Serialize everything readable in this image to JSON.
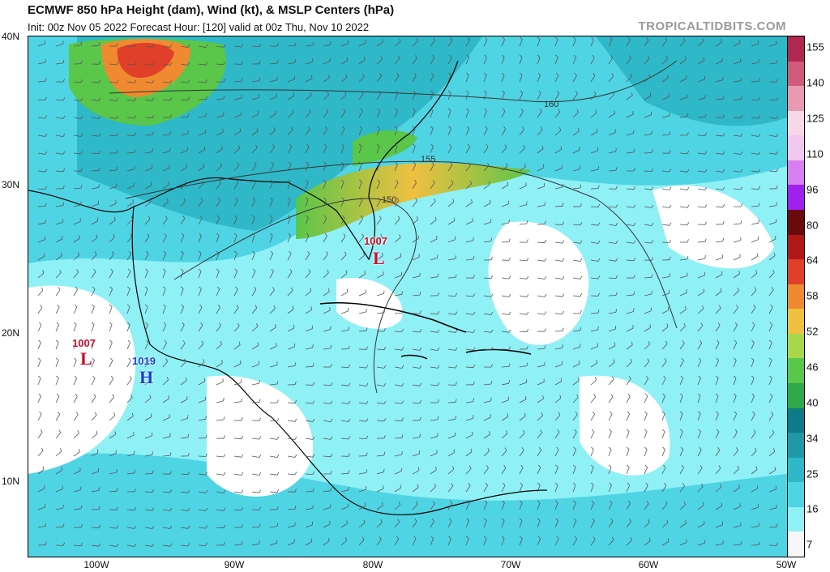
{
  "header": {
    "title": "ECMWF 850 hPa Height (dam), Wind (kt), & MSLP Centers (hPa)",
    "subtitle": "Init: 00z Nov 05 2022   Forecast Hour: [120]   valid at 00z Thu, Nov 10 2022",
    "brand": "TROPICALTIDBITS.COM"
  },
  "axes": {
    "lat_ticks": [
      "40N",
      "30N",
      "20N",
      "10N"
    ],
    "lon_ticks": [
      "100W",
      "90W",
      "80W",
      "70W",
      "60W",
      "50W"
    ]
  },
  "colorbar": {
    "labels": [
      "155",
      "140",
      "125",
      "110",
      "96",
      "80",
      "64",
      "58",
      "52",
      "46",
      "40",
      "34",
      "25",
      "16",
      "7"
    ],
    "colors": [
      "#f7f7f7",
      "#8ff0f6",
      "#4fd4e4",
      "#2fb8c8",
      "#1f98a8",
      "#0f7a88",
      "#2fa84a",
      "#5ac64a",
      "#a8d84a",
      "#f0c040",
      "#f08a30",
      "#e0402a",
      "#b01818",
      "#6a0a0a",
      "#a020f0",
      "#d880f0",
      "#f0c8f0",
      "#f8d8e8",
      "#e89ab0",
      "#d05a7a",
      "#b02850"
    ]
  },
  "pressure_centers": [
    {
      "type": "L",
      "value": "1007",
      "color": "#c8102e"
    },
    {
      "type": "L",
      "value": "1007",
      "color": "#c8102e"
    },
    {
      "type": "H",
      "value": "1019",
      "color": "#1540d8"
    }
  ],
  "contours": [
    "160",
    "155",
    "150"
  ]
}
